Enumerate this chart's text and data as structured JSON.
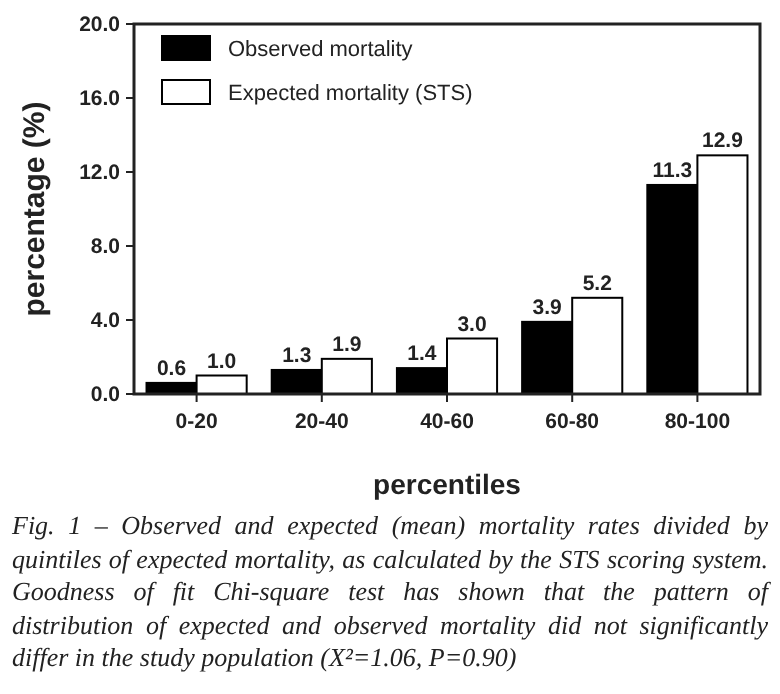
{
  "chart_data": {
    "type": "bar",
    "xlabel": "percentiles",
    "ylabel": "percentage (%)",
    "categories": [
      "0-20",
      "20-40",
      "40-60",
      "60-80",
      "80-100"
    ],
    "series": [
      {
        "name": "Observed mortality",
        "color": "#000000",
        "values": [
          0.6,
          1.3,
          1.4,
          3.9,
          11.3
        ],
        "value_labels": [
          "0.6",
          "1.3",
          "1.4",
          "3.9",
          "11.3"
        ]
      },
      {
        "name": "Expected mortality (STS)",
        "color": "#ffffff",
        "values": [
          1.0,
          1.9,
          3.0,
          5.2,
          12.9
        ],
        "value_labels": [
          "1.0",
          "1.9",
          "3.0",
          "5.2",
          "12.9"
        ]
      }
    ],
    "ylim": [
      0,
      20
    ],
    "yticks": [
      {
        "value": 0,
        "label": "0.0"
      },
      {
        "value": 4,
        "label": "4.0"
      },
      {
        "value": 8,
        "label": "8.0"
      },
      {
        "value": 12,
        "label": "12.0"
      },
      {
        "value": 16,
        "label": "16.0"
      },
      {
        "value": 20,
        "label": "20.0"
      }
    ],
    "legend": "top left",
    "grid": false,
    "annotations": [
      "Fig. 1 – Observed and expected (mean) mortality rates divided by quintiles of expected mortality, as calculated by the STS scoring system. Goodness of fit Chi-square test has shown that the pattern of distribution of expected and observed mortality did not significantly differ in the study population (X²=1.06, P=0.90)"
    ]
  }
}
